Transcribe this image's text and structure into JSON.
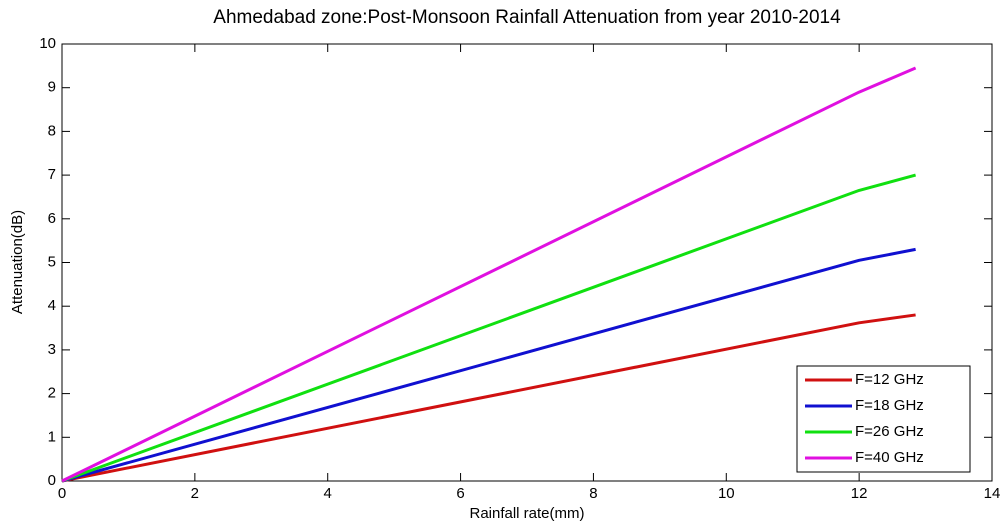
{
  "chart_data": {
    "type": "line",
    "title": "Ahmedabad zone:Post-Monsoon Rainfall Attenuation from year 2010-2014",
    "x_label": "Rainfall rate(mm)",
    "y_label": "Attenuation(dB)",
    "x": [
      0,
      12,
      12.85
    ],
    "series": [
      {
        "name": "F=12 GHz",
        "color": "#d01010",
        "values": [
          0,
          3.62,
          3.8
        ]
      },
      {
        "name": "F=18 GHz",
        "color": "#1010d0",
        "values": [
          0,
          5.05,
          5.3
        ]
      },
      {
        "name": "F=26 GHz",
        "color": "#10e010",
        "values": [
          0,
          6.65,
          7.0
        ]
      },
      {
        "name": "F=40 GHz",
        "color": "#e010e0",
        "values": [
          0,
          8.9,
          9.45
        ]
      }
    ],
    "xlim": [
      0,
      14
    ],
    "xticks": [
      0,
      2,
      4,
      6,
      8,
      10,
      12,
      14
    ],
    "ylim": [
      0,
      10
    ],
    "yticks": [
      0,
      1,
      2,
      3,
      4,
      5,
      6,
      7,
      8,
      9,
      10
    ],
    "legend": "southeast",
    "grid": false
  }
}
